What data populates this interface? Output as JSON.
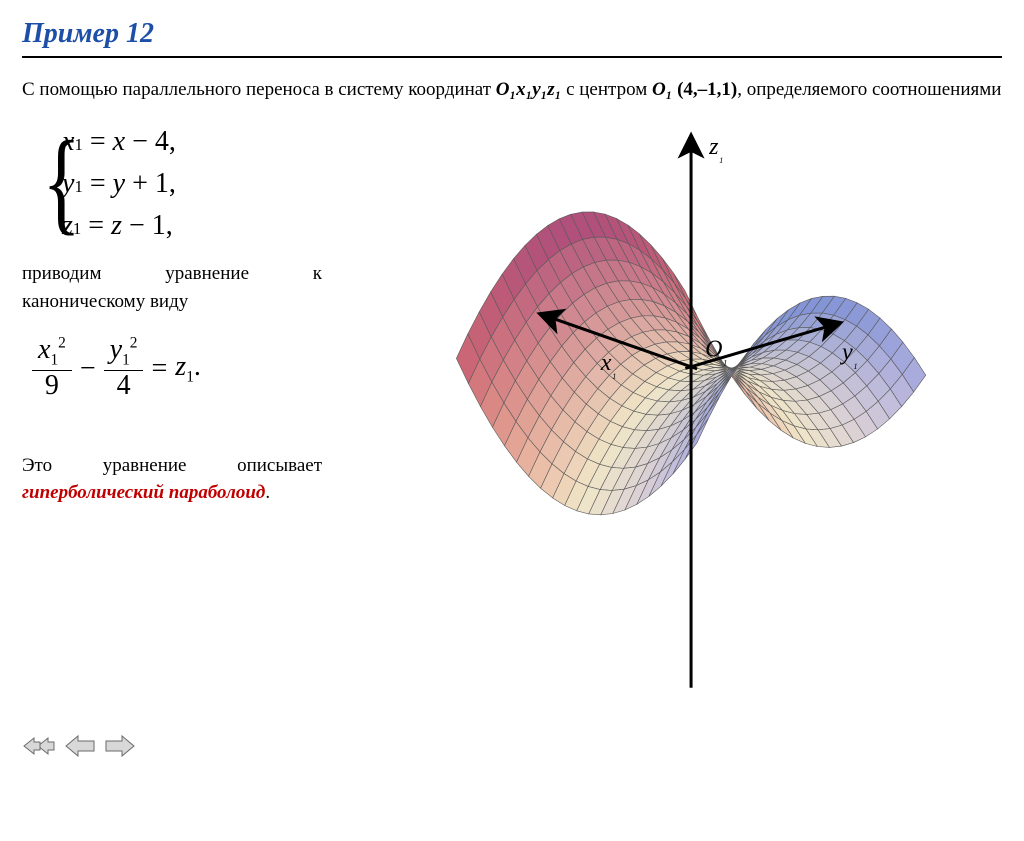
{
  "title": "Пример 12",
  "intro_part1": "С помощью параллельного переноса в систему координат ",
  "intro_coord_system": "O₁x₁y₁z₁",
  "intro_part2": " с центром ",
  "intro_center_label": "O₁",
  "intro_center_value": " (4,–1,1)",
  "intro_part3": ", определяемого соотношениями",
  "equations": {
    "line1": "x₁ = x − 4,",
    "line2": "y₁ = y + 1,",
    "line3": "z₁ = z − 1,"
  },
  "text_after_eqs": "приводим уравнение к каноническому виду",
  "canonical_eq": {
    "term1_num_var": "x",
    "term1_num_sub": "1",
    "term1_num_sup": "2",
    "term1_den": "9",
    "op": "−",
    "term2_num_var": "y",
    "term2_num_sub": "1",
    "term2_num_sup": "2",
    "term2_den": "4",
    "eq": "=",
    "rhs_var": "z",
    "rhs_sub": "1",
    "period": "."
  },
  "conclusion_part1": "Это уравнение описывает ",
  "conclusion_red": "гиперболический параболоид",
  "conclusion_period": ".",
  "chart": {
    "type": "surface-3d",
    "description": "hyperbolic paraboloid (saddle) wireframe",
    "axis_labels": {
      "x": "x₁",
      "y": "y₁",
      "z": "z₁",
      "origin": "O₁"
    },
    "colors": {
      "surface_left_top": "#a23a6e",
      "surface_left_bottom": "#e77a6a",
      "surface_center": "#f0e6c8",
      "surface_right_top": "#7a8ed6",
      "surface_right_bottom": "#d2c3e8",
      "mesh": "#5a5a5a",
      "axis": "#000000",
      "background": "#ffffff"
    },
    "axis_stroke_width": 3,
    "mesh_stroke_width": 0.6,
    "grid_density_u": 20,
    "grid_density_v": 20,
    "label_fontsize": 24,
    "label_font": "Times New Roman italic"
  },
  "nav": {
    "back_icon": "arrow-left-double",
    "prev_icon": "arrow-left",
    "next_icon": "arrow-right",
    "arrow_fill": "#d8d8d8",
    "arrow_stroke": "#6a6a6a"
  }
}
